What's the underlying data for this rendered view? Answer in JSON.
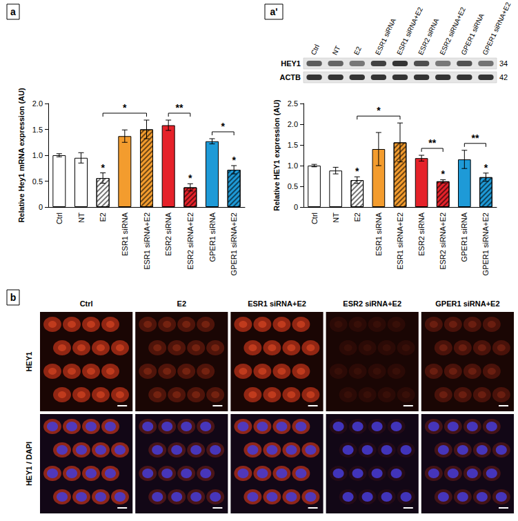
{
  "chart_data": [
    {
      "type": "bar",
      "ylabel": "Relative Hey1 mRNA expression (AU)",
      "categories": [
        "Ctrl",
        "NT",
        "E2",
        "ESR1 siRNA",
        "ESR1 siRNA+E2",
        "ESR2 siRNA",
        "ESR2 siRNA+E2",
        "GPER1 siRNA",
        "GPER1 siRNA+E2"
      ],
      "values": [
        1.0,
        0.95,
        0.56,
        1.37,
        1.5,
        1.58,
        0.38,
        1.27,
        0.72
      ],
      "errors": [
        0.03,
        0.1,
        0.1,
        0.12,
        0.18,
        0.1,
        0.07,
        0.05,
        0.08
      ],
      "colors": [
        "#ffffff",
        "#ffffff",
        "#ffffff",
        "#f39c2e",
        "#f39c2e",
        "#e5222a",
        "#e5222a",
        "#1e9ad7",
        "#1e9ad7"
      ],
      "ylim": [
        0,
        2
      ],
      "yticks": [
        0,
        0.5,
        {
          "value": 1,
          "label": "1.0"
        },
        1.5,
        {
          "value": 2,
          "label": "2.0"
        }
      ],
      "grid": false,
      "annotations": [
        {
          "category": "E2",
          "label": "*"
        },
        {
          "category": "ESR2 siRNA+E2",
          "label": "*"
        },
        {
          "category": "GPER1 siRNA+E2",
          "label": "*"
        },
        {
          "from": "E2",
          "to": "ESR1 siRNA+E2",
          "label": "*"
        },
        {
          "from": "ESR2 siRNA",
          "to": "ESR2 siRNA+E2",
          "label": "**"
        },
        {
          "from": "GPER1 siRNA",
          "to": "GPER1 siRNA+E2",
          "label": "*"
        }
      ]
    },
    {
      "type": "bar",
      "ylabel": "Relative HEY1 expression (AU)",
      "categories": [
        "Ctrl",
        "NT",
        "E2",
        "ESR1 siRNA",
        "ESR1 siRNA+E2",
        "ESR2 siRNA",
        "ESR2 siRNA+E2",
        "GPER1 siRNA",
        "GPER1 siRNA+E2"
      ],
      "values": [
        1.0,
        0.88,
        0.65,
        1.4,
        1.56,
        1.18,
        0.62,
        1.15,
        0.72
      ],
      "errors": [
        0.03,
        0.08,
        0.08,
        0.4,
        0.47,
        0.07,
        0.04,
        0.22,
        0.1
      ],
      "colors": [
        "#ffffff",
        "#ffffff",
        "#ffffff",
        "#f39c2e",
        "#f39c2e",
        "#e5222a",
        "#e5222a",
        "#1e9ad7",
        "#1e9ad7"
      ],
      "ylim": [
        0,
        2.5
      ],
      "yticks": [
        0,
        0.5,
        {
          "value": 1,
          "label": "1.0"
        },
        1.5,
        {
          "value": 2,
          "label": "2.0"
        },
        2.5
      ],
      "grid": false,
      "annotations": [
        {
          "category": "E2",
          "label": "*"
        },
        {
          "category": "ESR2 siRNA+E2",
          "label": "*"
        },
        {
          "category": "GPER1 siRNA+E2",
          "label": "*"
        },
        {
          "from": "E2",
          "to": "ESR1 siRNA+E2",
          "label": "*"
        },
        {
          "from": "ESR2 siRNA",
          "to": "ESR2 siRNA+E2",
          "label": "**"
        },
        {
          "from": "GPER1 siRNA",
          "to": "GPER1 siRNA+E2",
          "label": "**"
        }
      ]
    }
  ],
  "panel_labels": [
    "a",
    "a'",
    "b"
  ],
  "blot": {
    "rows": [
      {
        "label": "HEY1",
        "kda": 34
      },
      {
        "label": "ACTB",
        "kda": 42
      }
    ]
  },
  "micrographs": {
    "columns": [
      "Ctrl",
      "E2",
      "ESR1 siRNA+E2",
      "ESR2 siRNA+E2",
      "GPER1 siRNA+E2"
    ],
    "rows": [
      "HEY1",
      "HEY1 / DAPI"
    ]
  }
}
